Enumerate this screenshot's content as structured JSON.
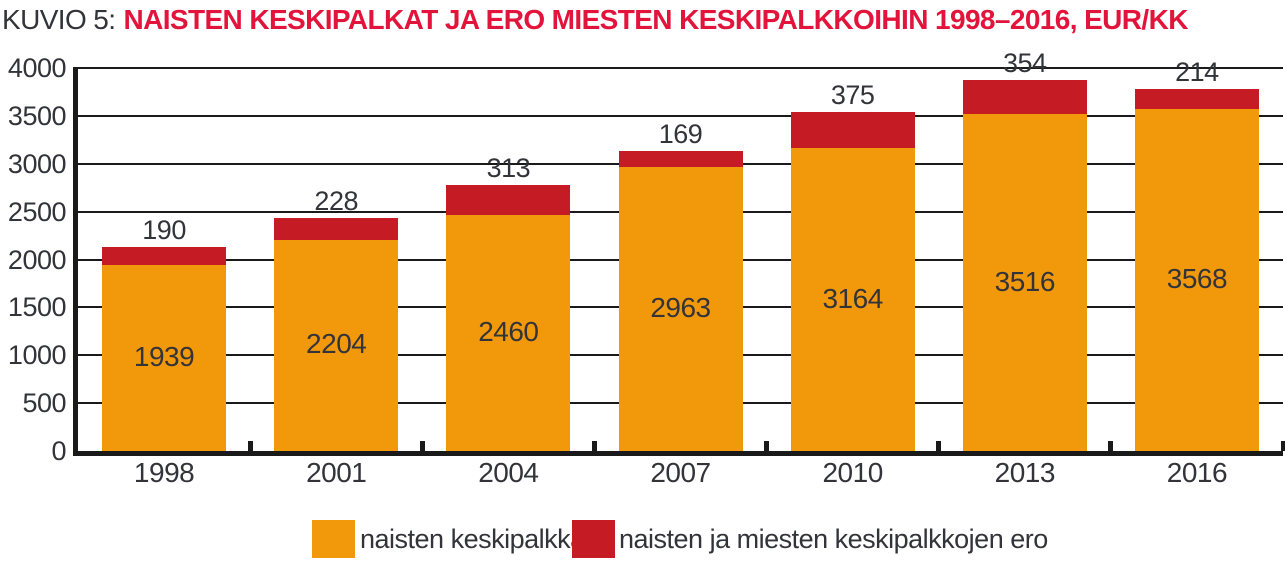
{
  "title": {
    "prefix": "KUVIO 5:",
    "main": "NAISTEN KESKIPALKAT JA ERO MIESTEN KESKIPALKKOIHIN 1998–2016, EUR/KK"
  },
  "colors": {
    "women_salary": "#F2990B",
    "gap": "#C41B24",
    "title_accent": "#E3143C",
    "axis": "#1A1A1A",
    "text": "#33343A"
  },
  "chart_data": {
    "type": "bar",
    "stacked": true,
    "title": "NAISTEN KESKIPALKAT JA ERO MIESTEN KESKIPALKKOIHIN 1998–2016, EUR/KK",
    "unit": "EUR/KK",
    "categories": [
      "1998",
      "2001",
      "2004",
      "2007",
      "2010",
      "2013",
      "2016"
    ],
    "series": [
      {
        "name": "naisten keskipalkka",
        "color_key": "women_salary",
        "values": [
          1939,
          2204,
          2460,
          2963,
          3164,
          3516,
          3568
        ]
      },
      {
        "name": "naisten ja miesten keskipalkkojen ero",
        "color_key": "gap",
        "values": [
          190,
          228,
          313,
          169,
          375,
          354,
          214
        ]
      }
    ],
    "totals": [
      2129,
      2432,
      2773,
      3132,
      3539,
      3870,
      3782
    ],
    "ylim": [
      0,
      4000
    ],
    "ytick_step": 500,
    "grid": true,
    "legend_position": "bottom"
  },
  "legend": {
    "items": [
      {
        "label": "naisten keskipalkka",
        "color_key": "women_salary"
      },
      {
        "label": "naisten ja miesten keskipalkkojen ero",
        "color_key": "gap"
      }
    ]
  }
}
